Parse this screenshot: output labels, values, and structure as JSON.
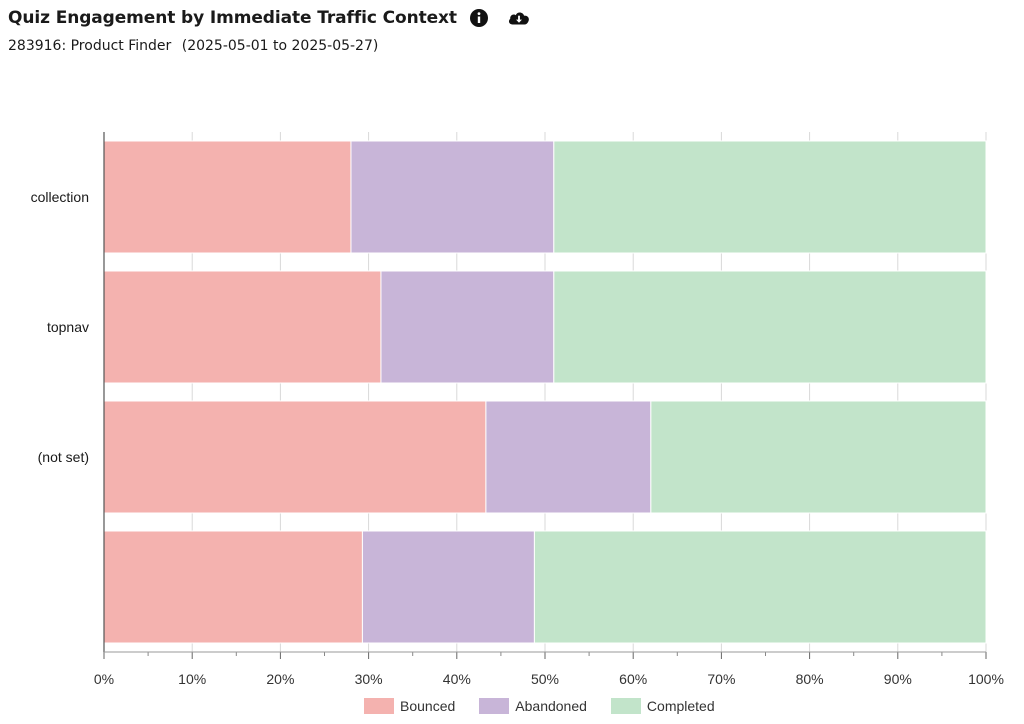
{
  "header": {
    "title": "Quiz Engagement by Immediate Traffic Context",
    "subtitle_id_name": "283916: Product Finder",
    "subtitle_range": "(2025-05-01 to 2025-05-27)",
    "info_icon": "info-circle-icon",
    "download_icon": "cloud-download-icon"
  },
  "chart_data": {
    "type": "bar",
    "orientation": "horizontal",
    "stacked": true,
    "normalized_percent": true,
    "categories": [
      "collection",
      "topnav",
      "(not set)",
      ""
    ],
    "series": [
      {
        "name": "Bounced",
        "color": "#f4b2af",
        "values": [
          28,
          31.4,
          43.3,
          29.3
        ]
      },
      {
        "name": "Abandoned",
        "color": "#c8b5d8",
        "values": [
          23,
          19.6,
          18.7,
          19.5
        ]
      },
      {
        "name": "Completed",
        "color": "#c2e4ca",
        "values": [
          49,
          49,
          38,
          51.2
        ]
      }
    ],
    "xlim": [
      0,
      100
    ],
    "x_ticks": [
      "0%",
      "10%",
      "20%",
      "30%",
      "40%",
      "50%",
      "60%",
      "70%",
      "80%",
      "90%",
      "100%"
    ],
    "grid": true,
    "legend_position": "bottom-center",
    "xlabel": "",
    "ylabel": ""
  }
}
